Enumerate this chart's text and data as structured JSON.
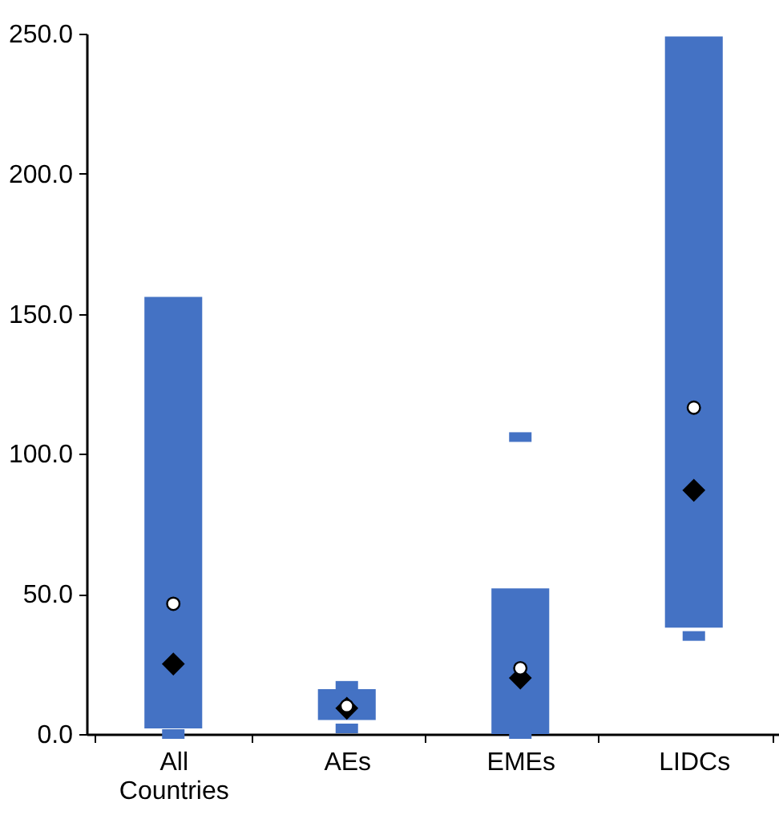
{
  "chart_data": {
    "type": "bar",
    "categories": [
      "All Countries",
      "AEs",
      "EMEs",
      "LIDCs"
    ],
    "series": [
      {
        "color": "#4472c4",
        "base": [
          2,
          5,
          0,
          38
        ],
        "values": [
          154,
          11,
          52,
          211
        ]
      },
      {
        "type": "scatter",
        "color": "#4472c4",
        "marker": "square",
        "x": [
          "AEs",
          "EMEs",
          "All Countries",
          "AEs",
          "EMEs",
          "LIDCs"
        ],
        "values": [
          17.2,
          106,
          0,
          2,
          0,
          35
        ]
      },
      {
        "type": "scatter",
        "color": "#000000",
        "marker": "diamond",
        "values": [
          25,
          9.2,
          20,
          87
        ]
      },
      {
        "type": "scatter",
        "color": "#ffffff",
        "marker": "circle",
        "values": [
          46.5,
          10,
          23.5,
          116.5
        ]
      }
    ],
    "ylim": [
      0,
      250
    ],
    "yticks": [
      {
        "value": 0,
        "label": "0.0"
      },
      {
        "value": 50,
        "label": "50.0"
      },
      {
        "value": 100,
        "label": "100.0"
      },
      {
        "value": 150,
        "label": "150.0"
      },
      {
        "value": 200,
        "label": "200.0"
      },
      {
        "value": 250,
        "label": "250.0"
      }
    ],
    "grid": false,
    "legend": false
  }
}
